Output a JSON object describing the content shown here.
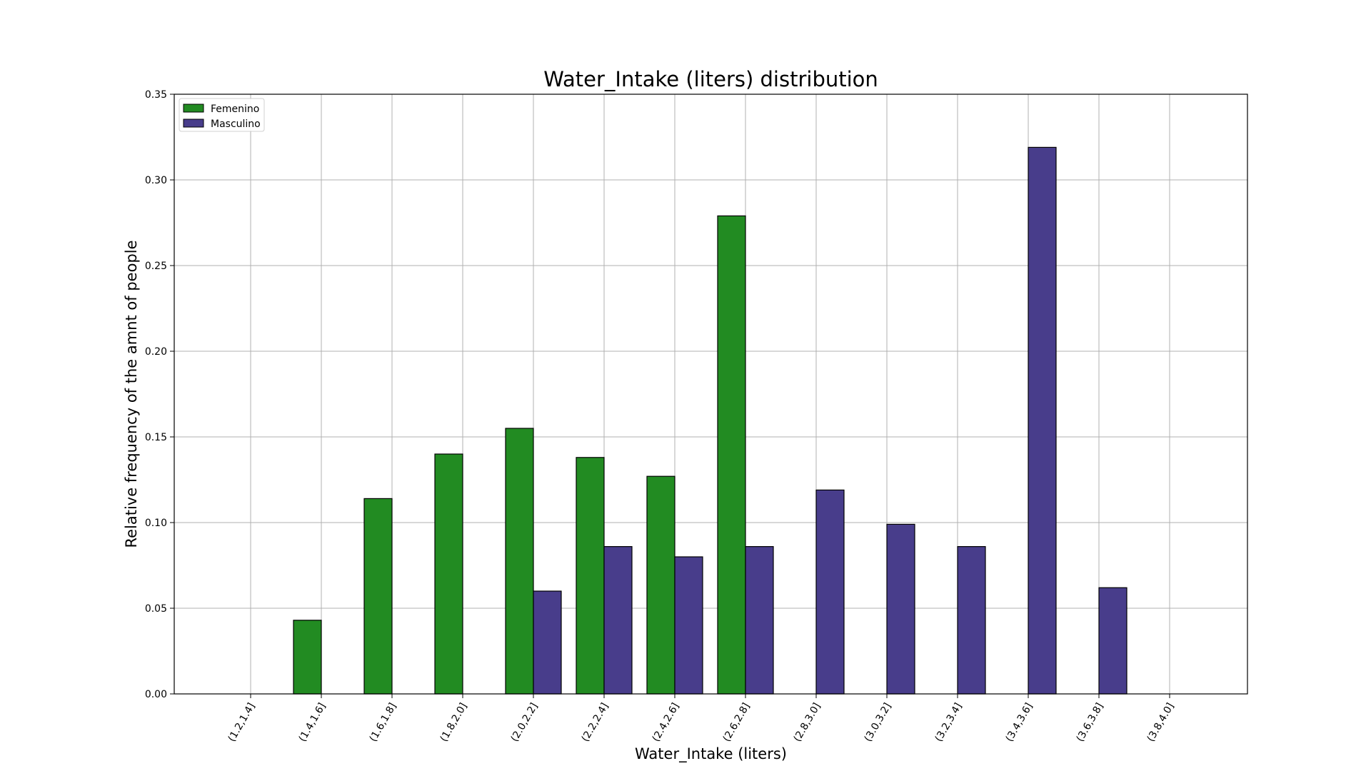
{
  "chart_data": {
    "type": "bar",
    "title": "Water_Intake (liters) distribution",
    "xlabel": "Water_Intake (liters)",
    "ylabel": "Relative frequency of the amnt of people",
    "categories": [
      "(1.2,1.4]",
      "(1.4,1.6]",
      "(1.6,1.8]",
      "(1.8,2.0]",
      "(2.0,2.2]",
      "(2.2,2.4]",
      "(2.4,2.6]",
      "(2.6,2.8]",
      "(2.8,3.0]",
      "(3.0,3.2]",
      "(3.2,3.4]",
      "(3.4,3.6]",
      "(3.6,3.8]",
      "(3.8,4.0]"
    ],
    "series": [
      {
        "name": "Femenino",
        "color": "#228b22",
        "values": [
          0.0,
          0.043,
          0.114,
          0.14,
          0.155,
          0.138,
          0.127,
          0.279,
          0.0,
          0.0,
          0.0,
          0.0,
          0.0,
          0.0
        ]
      },
      {
        "name": "Masculino",
        "color": "#483d8b",
        "values": [
          0.0,
          0.0,
          0.0,
          0.0,
          0.06,
          0.086,
          0.08,
          0.086,
          0.119,
          0.099,
          0.086,
          0.319,
          0.062,
          0.0
        ]
      }
    ],
    "ylim": [
      0,
      0.35
    ],
    "yticks": [
      "0.00",
      "0.05",
      "0.10",
      "0.15",
      "0.20",
      "0.25",
      "0.30",
      "0.35"
    ],
    "grid": true,
    "legend_position": "top-left"
  }
}
